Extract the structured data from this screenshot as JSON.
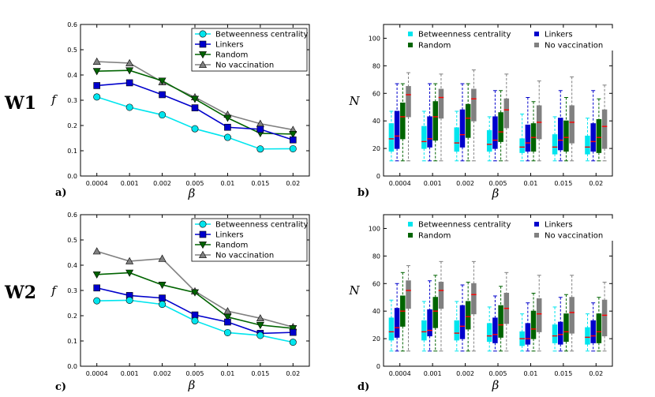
{
  "row_labels": [
    "W1",
    "W2"
  ],
  "colors": {
    "Betweenness centrality": "#00e5ee",
    "Linkers": "#0000cc",
    "Random": "#006400",
    "No vaccination": "#808080",
    "median": "#ff0000"
  },
  "chart_data": [
    {
      "type": "line",
      "panel": "a)",
      "row": "W1",
      "xlabel": "β",
      "ylabel": "f",
      "categories": [
        "0.0004",
        "0.001",
        "0.002",
        "0.005",
        "0.01",
        "0.015",
        "0.02"
      ],
      "ylim": [
        0,
        0.6
      ],
      "yticks": [
        "0.0",
        "0.1",
        "0.2",
        "0.3",
        "0.4",
        "0.5",
        "0.6"
      ],
      "legend_position": "top-right",
      "series": [
        {
          "name": "Betweenness centrality",
          "marker": "circle",
          "values": [
            0.313,
            0.272,
            0.242,
            0.187,
            0.153,
            0.107,
            0.108
          ]
        },
        {
          "name": "Linkers",
          "marker": "square",
          "values": [
            0.358,
            0.369,
            0.322,
            0.27,
            0.193,
            0.185,
            0.143
          ]
        },
        {
          "name": "Random",
          "marker": "triangle-down",
          "values": [
            0.415,
            0.418,
            0.377,
            0.305,
            0.23,
            0.169,
            0.166
          ]
        },
        {
          "name": "No vaccination",
          "marker": "triangle-up",
          "values": [
            0.453,
            0.447,
            0.372,
            0.312,
            0.243,
            0.207,
            0.183
          ]
        }
      ]
    },
    {
      "type": "box",
      "panel": "b)",
      "row": "W1",
      "xlabel": "β",
      "ylabel": "N",
      "categories": [
        "0.0004",
        "0.001",
        "0.002",
        "0.005",
        "0.01",
        "0.015",
        "0.02"
      ],
      "ylim": [
        0,
        110
      ],
      "yticks": [
        "0",
        "20",
        "40",
        "60",
        "80",
        "100"
      ],
      "legend_position": "top",
      "series": [
        {
          "name": "Betweenness centrality",
          "boxes": [
            {
              "whislo": 11,
              "q1": 18,
              "med": 27,
              "q3": 38,
              "whishi": 47
            },
            {
              "whislo": 11,
              "q1": 20,
              "med": 25,
              "q3": 36,
              "whishi": 47
            },
            {
              "whislo": 11,
              "q1": 18,
              "med": 24,
              "q3": 35,
              "whishi": 47
            },
            {
              "whislo": 11,
              "q1": 18,
              "med": 23,
              "q3": 33,
              "whishi": 43
            },
            {
              "whislo": 11,
              "q1": 17,
              "med": 21,
              "q3": 27,
              "whishi": 45
            },
            {
              "whislo": 11,
              "q1": 16,
              "med": 21,
              "q3": 30,
              "whishi": 43
            },
            {
              "whislo": 11,
              "q1": 16,
              "med": 21,
              "q3": 29,
              "whishi": 42
            }
          ]
        },
        {
          "name": "Linkers",
          "boxes": [
            {
              "whislo": 11,
              "q1": 20,
              "med": 29,
              "q3": 47,
              "whishi": 67
            },
            {
              "whislo": 11,
              "q1": 21,
              "med": 27,
              "q3": 43,
              "whishi": 67
            },
            {
              "whislo": 11,
              "q1": 21,
              "med": 30,
              "q3": 48,
              "whishi": 67
            },
            {
              "whislo": 11,
              "q1": 20,
              "med": 26,
              "q3": 43,
              "whishi": 62
            },
            {
              "whislo": 11,
              "q1": 18,
              "med": 24,
              "q3": 37,
              "whishi": 57
            },
            {
              "whislo": 11,
              "q1": 19,
              "med": 26,
              "q3": 42,
              "whishi": 62
            },
            {
              "whislo": 11,
              "q1": 18,
              "med": 25,
              "q3": 38,
              "whishi": 62
            }
          ]
        },
        {
          "name": "Random",
          "boxes": [
            {
              "whislo": 11,
              "q1": 27,
              "med": 43,
              "q3": 53,
              "whishi": 67
            },
            {
              "whislo": 11,
              "q1": 26,
              "med": 43,
              "q3": 54,
              "whishi": 67
            },
            {
              "whislo": 11,
              "q1": 28,
              "med": 42,
              "q3": 52,
              "whishi": 67
            },
            {
              "whislo": 11,
              "q1": 25,
              "med": 32,
              "q3": 46,
              "whishi": 62
            },
            {
              "whislo": 11,
              "q1": 18,
              "med": 28,
              "q3": 38,
              "whishi": 54
            },
            {
              "whislo": 11,
              "q1": 18,
              "med": 28,
              "q3": 40,
              "whishi": 57
            },
            {
              "whislo": 11,
              "q1": 17,
              "med": 28,
              "q3": 41,
              "whishi": 56
            }
          ]
        },
        {
          "name": "No vaccination",
          "boxes": [
            {
              "whislo": 11,
              "q1": 43,
              "med": 59,
              "q3": 65,
              "whishi": 75
            },
            {
              "whislo": 11,
              "q1": 42,
              "med": 57,
              "q3": 63,
              "whishi": 74
            },
            {
              "whislo": 11,
              "q1": 40,
              "med": 56,
              "q3": 63,
              "whishi": 77
            },
            {
              "whislo": 11,
              "q1": 35,
              "med": 48,
              "q3": 56,
              "whishi": 74
            },
            {
              "whislo": 11,
              "q1": 27,
              "med": 39,
              "q3": 51,
              "whishi": 69
            },
            {
              "whislo": 11,
              "q1": 24,
              "med": 39,
              "q3": 51,
              "whishi": 72
            },
            {
              "whislo": 11,
              "q1": 20,
              "med": 36,
              "q3": 48,
              "whishi": 66
            }
          ]
        }
      ]
    },
    {
      "type": "line",
      "panel": "c)",
      "row": "W2",
      "xlabel": "β",
      "ylabel": "f",
      "categories": [
        "0.0004",
        "0.001",
        "0.002",
        "0.005",
        "0.01",
        "0.015",
        "0.02"
      ],
      "ylim": [
        0,
        0.6
      ],
      "yticks": [
        "0.0",
        "0.1",
        "0.2",
        "0.3",
        "0.4",
        "0.5",
        "0.6"
      ],
      "legend_position": "top-right",
      "series": [
        {
          "name": "Betweenness centrality",
          "marker": "circle",
          "values": [
            0.259,
            0.261,
            0.245,
            0.18,
            0.133,
            0.122,
            0.095
          ]
        },
        {
          "name": "Linkers",
          "marker": "square",
          "values": [
            0.31,
            0.28,
            0.27,
            0.203,
            0.175,
            0.13,
            0.134
          ]
        },
        {
          "name": "Random",
          "marker": "triangle-down",
          "values": [
            0.363,
            0.37,
            0.322,
            0.292,
            0.195,
            0.163,
            0.15
          ]
        },
        {
          "name": "No vaccination",
          "marker": "triangle-up",
          "values": [
            0.455,
            0.416,
            0.426,
            0.297,
            0.218,
            0.19,
            0.155
          ]
        }
      ]
    },
    {
      "type": "box",
      "panel": "d)",
      "row": "W2",
      "xlabel": "β",
      "ylabel": "N",
      "categories": [
        "0.0004",
        "0.001",
        "0.002",
        "0.005",
        "0.01",
        "0.015",
        "0.02"
      ],
      "ylim": [
        0,
        110
      ],
      "yticks": [
        "0",
        "20",
        "40",
        "60",
        "80",
        "100"
      ],
      "legend_position": "top",
      "series": [
        {
          "name": "Betweenness centrality",
          "boxes": [
            {
              "whislo": 11,
              "q1": 19,
              "med": 25,
              "q3": 35,
              "whishi": 48
            },
            {
              "whislo": 11,
              "q1": 19,
              "med": 25,
              "q3": 33,
              "whishi": 47
            },
            {
              "whislo": 11,
              "q1": 19,
              "med": 24,
              "q3": 33,
              "whishi": 47
            },
            {
              "whislo": 11,
              "q1": 18,
              "med": 22,
              "q3": 31,
              "whishi": 43
            },
            {
              "whislo": 11,
              "q1": 15,
              "med": 20,
              "q3": 25,
              "whishi": 38
            },
            {
              "whislo": 11,
              "q1": 17,
              "med": 22,
              "q3": 30,
              "whishi": 43
            },
            {
              "whislo": 11,
              "q1": 16,
              "med": 21,
              "q3": 28,
              "whishi": 38
            }
          ]
        },
        {
          "name": "Linkers",
          "boxes": [
            {
              "whislo": 11,
              "q1": 21,
              "med": 28,
              "q3": 42,
              "whishi": 60
            },
            {
              "whislo": 11,
              "q1": 22,
              "med": 26,
              "q3": 41,
              "whishi": 62
            },
            {
              "whislo": 11,
              "q1": 20,
              "med": 29,
              "q3": 44,
              "whishi": 59
            },
            {
              "whislo": 11,
              "q1": 17,
              "med": 23,
              "q3": 35,
              "whishi": 51
            },
            {
              "whislo": 11,
              "q1": 16,
              "med": 20,
              "q3": 31,
              "whishi": 46
            },
            {
              "whislo": 11,
              "q1": 16,
              "med": 23,
              "q3": 32,
              "whishi": 50
            },
            {
              "whislo": 11,
              "q1": 17,
              "med": 22,
              "q3": 33,
              "whishi": 46
            }
          ]
        },
        {
          "name": "Random",
          "boxes": [
            {
              "whislo": 11,
              "q1": 29,
              "med": 40,
              "q3": 51,
              "whishi": 68
            },
            {
              "whislo": 11,
              "q1": 28,
              "med": 40,
              "q3": 50,
              "whishi": 66
            },
            {
              "whislo": 11,
              "q1": 27,
              "med": 36,
              "q3": 47,
              "whishi": 61
            },
            {
              "whislo": 11,
              "q1": 21,
              "med": 30,
              "q3": 44,
              "whishi": 58
            },
            {
              "whislo": 11,
              "q1": 20,
              "med": 27,
              "q3": 40,
              "whishi": 53
            },
            {
              "whislo": 11,
              "q1": 18,
              "med": 25,
              "q3": 38,
              "whishi": 52
            },
            {
              "whislo": 11,
              "q1": 17,
              "med": 25,
              "q3": 38,
              "whishi": 50
            }
          ]
        },
        {
          "name": "No vaccination",
          "boxes": [
            {
              "whislo": 11,
              "q1": 42,
              "med": 55,
              "q3": 62,
              "whishi": 73
            },
            {
              "whislo": 11,
              "q1": 42,
              "med": 55,
              "q3": 61,
              "whishi": 76
            },
            {
              "whislo": 11,
              "q1": 38,
              "med": 52,
              "q3": 60,
              "whishi": 76
            },
            {
              "whislo": 11,
              "q1": 31,
              "med": 42,
              "q3": 53,
              "whishi": 68
            },
            {
              "whislo": 11,
              "q1": 25,
              "med": 38,
              "q3": 49,
              "whishi": 66
            },
            {
              "whislo": 11,
              "q1": 24,
              "med": 39,
              "q3": 50,
              "whishi": 66
            },
            {
              "whislo": 11,
              "q1": 22,
              "med": 37,
              "q3": 48,
              "whishi": 61
            }
          ]
        }
      ]
    }
  ]
}
